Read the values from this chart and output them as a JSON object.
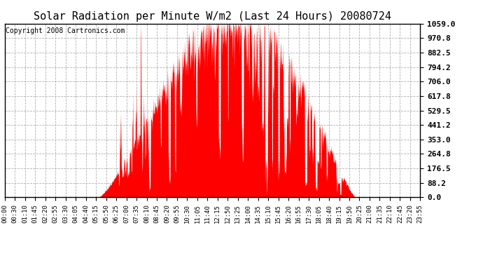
{
  "title": "Solar Radiation per Minute W/m2 (Last 24 Hours) 20080724",
  "copyright_text": "Copyright 2008 Cartronics.com",
  "y_ticks": [
    0.0,
    88.2,
    176.5,
    264.8,
    353.0,
    441.2,
    529.5,
    617.8,
    706.0,
    794.2,
    882.5,
    970.8,
    1059.0
  ],
  "ymax": 1059.0,
  "ymin": 0.0,
  "fill_color": "#ff0000",
  "line_color": "#ff0000",
  "dashed_line_color": "#cc0000",
  "grid_color": "#b0b0b0",
  "background_color": "#ffffff",
  "x_tick_labels": [
    "00:00",
    "00:30",
    "01:10",
    "01:45",
    "02:20",
    "02:55",
    "03:30",
    "04:05",
    "04:40",
    "05:15",
    "05:50",
    "06:25",
    "07:00",
    "07:35",
    "08:10",
    "08:45",
    "09:20",
    "09:55",
    "10:30",
    "11:05",
    "11:40",
    "12:15",
    "12:50",
    "13:25",
    "14:00",
    "14:35",
    "15:10",
    "15:45",
    "16:20",
    "16:55",
    "17:30",
    "18:05",
    "18:40",
    "19:15",
    "19:50",
    "20:25",
    "21:00",
    "21:35",
    "22:10",
    "22:45",
    "23:20",
    "23:55"
  ],
  "title_fontsize": 11,
  "copyright_fontsize": 7,
  "tick_fontsize": 6.5,
  "y_tick_fontsize": 8,
  "sunrise_min": 325,
  "sunset_min": 1215,
  "peak_min": 805,
  "peak_val": 1059.0
}
